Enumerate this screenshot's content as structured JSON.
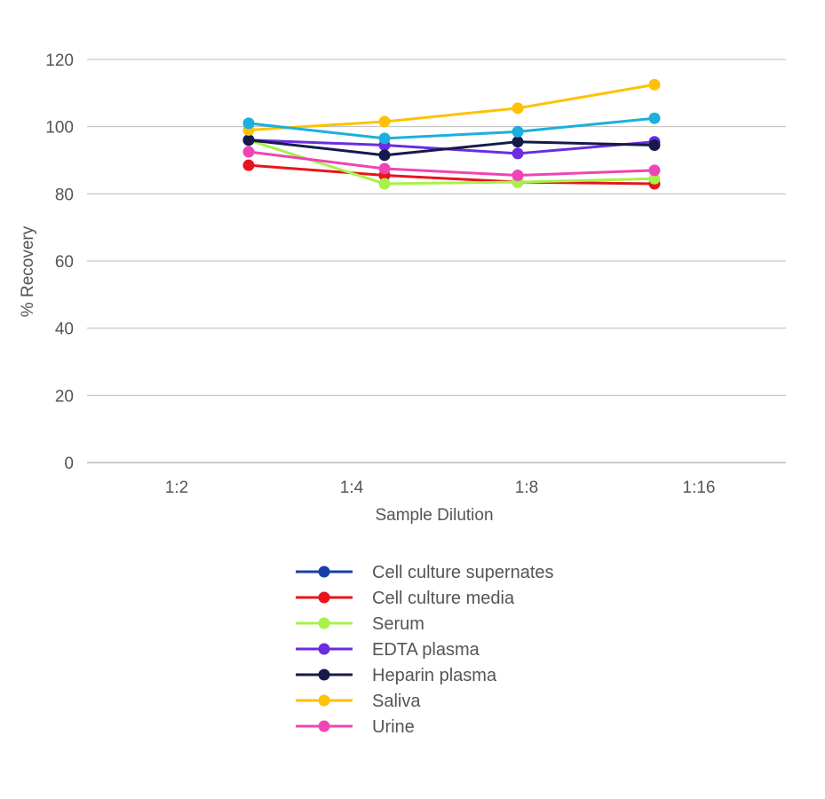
{
  "chart_data": {
    "type": "line",
    "title": "",
    "xlabel": "Sample Dilution",
    "ylabel": "% Recovery",
    "categories": [
      "1:2",
      "1:4",
      "1:8",
      "1:16"
    ],
    "ylim": [
      0,
      120
    ],
    "yticks": [
      0,
      20,
      40,
      60,
      80,
      100,
      120
    ],
    "grid": true,
    "legend_position": "bottom",
    "series": [
      {
        "name": "Cell culture supernates",
        "color": "#1a3fa8",
        "values": [
          null,
          null,
          null,
          null
        ]
      },
      {
        "name": "Cell culture media",
        "color": "#e8141c",
        "values": [
          88.5,
          85.5,
          83.5,
          83
        ]
      },
      {
        "name": "Serum",
        "color": "#a6f24a",
        "values": [
          96,
          83,
          83.5,
          84.5
        ]
      },
      {
        "name": "EDTA plasma",
        "color": "#6a2de0",
        "values": [
          96,
          94.5,
          92,
          95.5
        ]
      },
      {
        "name": "Heparin plasma",
        "color": "#161a4a",
        "values": [
          96,
          91.5,
          95.5,
          94.5
        ]
      },
      {
        "name": "Saliva",
        "color": "#ffc107",
        "values": [
          99,
          101.5,
          105.5,
          112.5
        ]
      },
      {
        "name": "Urine",
        "color": "#f044b4",
        "values": [
          92.5,
          87.5,
          85.5,
          87
        ]
      },
      {
        "name": "",
        "color": "#1ab0dd",
        "values": [
          101,
          96.5,
          98.5,
          102.5
        ]
      }
    ]
  }
}
